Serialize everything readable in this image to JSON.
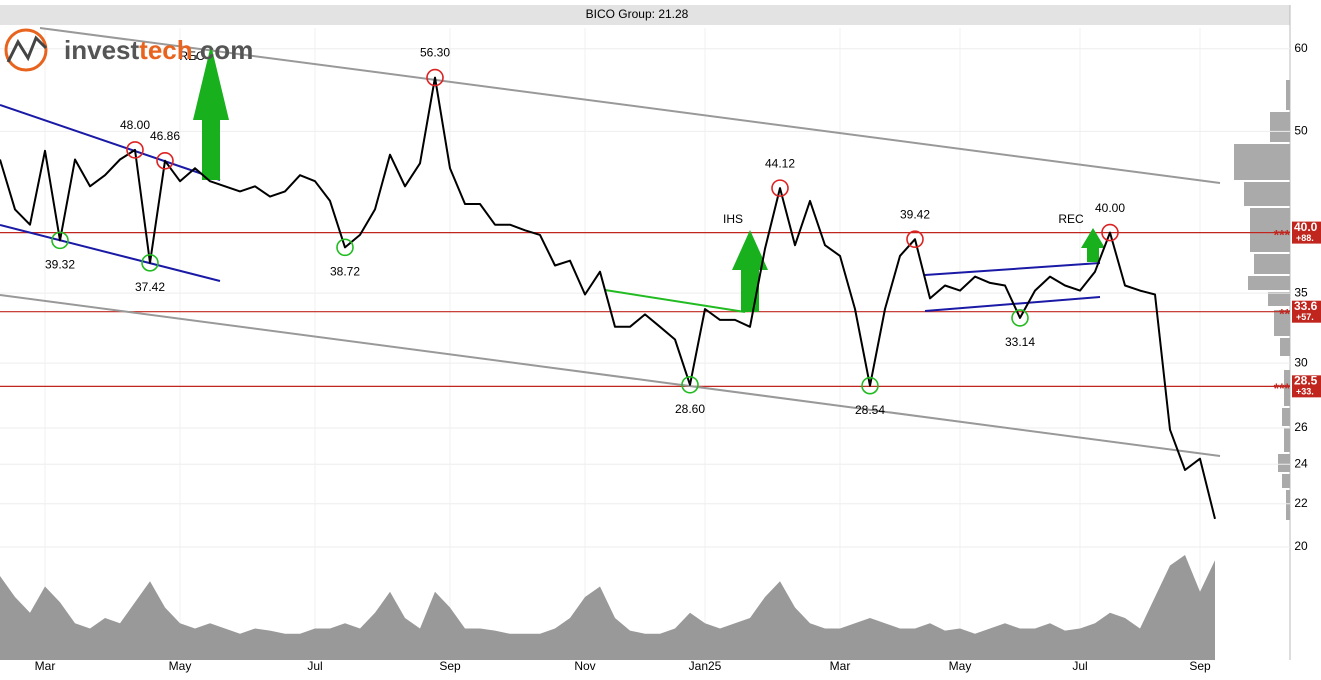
{
  "logo": [
    "invest",
    "tech",
    ".com"
  ],
  "chart_data": {
    "type": "line",
    "title": "BICO Group: 21.28",
    "categories": [
      null,
      null,
      null,
      "Mar",
      null,
      null,
      null,
      null,
      null,
      null,
      null,
      null,
      "May",
      null,
      null,
      null,
      null,
      null,
      null,
      null,
      null,
      "Jul",
      null,
      null,
      null,
      null,
      null,
      null,
      null,
      null,
      "Sep",
      null,
      null,
      null,
      null,
      null,
      null,
      null,
      null,
      "Nov",
      null,
      null,
      null,
      null,
      null,
      null,
      null,
      "Jan25",
      null,
      null,
      null,
      null,
      null,
      null,
      null,
      null,
      "Mar",
      null,
      null,
      null,
      null,
      null,
      null,
      null,
      "May",
      null,
      null,
      null,
      null,
      null,
      null,
      null,
      "Jul",
      null,
      null,
      null,
      null,
      null,
      null,
      null,
      "Sep",
      null
    ],
    "values": [
      47.0,
      42.1,
      40.7,
      47.9,
      39.32,
      47.0,
      44.3,
      45.4,
      47.0,
      48.0,
      37.42,
      46.86,
      44.8,
      46.1,
      44.8,
      44.3,
      43.8,
      44.3,
      43.3,
      43.8,
      45.4,
      44.8,
      42.9,
      38.72,
      39.8,
      42.1,
      47.5,
      44.3,
      46.6,
      56.3,
      46.1,
      42.6,
      42.6,
      40.7,
      40.7,
      40.2,
      39.8,
      37.2,
      37.6,
      34.9,
      36.7,
      32.5,
      32.5,
      33.4,
      32.5,
      31.6,
      28.6,
      33.8,
      33.0,
      33.0,
      32.5,
      38.6,
      44.12,
      38.9,
      42.9,
      38.9,
      38.0,
      33.8,
      28.54,
      33.8,
      38.0,
      39.42,
      34.6,
      35.6,
      35.2,
      36.3,
      35.8,
      35.6,
      33.14,
      35.2,
      36.3,
      35.6,
      35.2,
      36.7,
      40.0,
      35.6,
      35.2,
      34.9,
      25.9,
      23.7,
      24.3,
      21.28
    ],
    "value_labels": [
      null,
      null,
      null,
      null,
      "39.32",
      null,
      null,
      null,
      null,
      "48.00",
      "37.42",
      "46.86",
      null,
      null,
      null,
      null,
      null,
      null,
      null,
      null,
      null,
      null,
      null,
      "38.72",
      null,
      null,
      null,
      null,
      null,
      "56.30",
      null,
      null,
      null,
      null,
      null,
      null,
      null,
      null,
      null,
      null,
      null,
      null,
      null,
      null,
      null,
      null,
      "28.60",
      null,
      null,
      null,
      null,
      null,
      "44.12",
      null,
      null,
      null,
      null,
      null,
      "28.54",
      null,
      null,
      "39.42",
      null,
      null,
      null,
      null,
      null,
      null,
      "33.14",
      null,
      null,
      null,
      null,
      null,
      "40.00",
      null,
      null,
      null,
      null,
      null,
      null,
      null
    ],
    "color": "#000000",
    "volume": [
      80,
      60,
      45,
      70,
      55,
      35,
      30,
      40,
      35,
      55,
      75,
      50,
      35,
      30,
      35,
      30,
      25,
      30,
      28,
      25,
      25,
      30,
      30,
      35,
      30,
      45,
      65,
      40,
      30,
      65,
      50,
      30,
      30,
      28,
      25,
      25,
      25,
      30,
      40,
      60,
      70,
      40,
      28,
      25,
      25,
      30,
      45,
      35,
      30,
      35,
      40,
      60,
      75,
      50,
      35,
      30,
      30,
      35,
      40,
      35,
      30,
      30,
      35,
      28,
      30,
      25,
      30,
      35,
      30,
      30,
      35,
      28,
      30,
      35,
      45,
      40,
      30,
      60,
      90,
      100,
      65,
      95
    ],
    "volume_color": "#999999",
    "ylim": [
      20,
      62.8
    ],
    "yticks": [
      20,
      22,
      24,
      26,
      30,
      35,
      40,
      50,
      60
    ],
    "log_scale": true,
    "grid": true,
    "levels": [
      {
        "value": 40,
        "label": "40.0"
      },
      {
        "value": 33.6,
        "label": "33.6"
      },
      {
        "value": 28.5,
        "label": "28.5"
      }
    ],
    "level_changes": [
      "+88.",
      "+57.",
      "+33."
    ],
    "level_marks": [
      "***",
      "**",
      "***"
    ],
    "level_color": "#c0261e",
    "annotations": [
      "REC",
      "IHS",
      "REC"
    ]
  }
}
